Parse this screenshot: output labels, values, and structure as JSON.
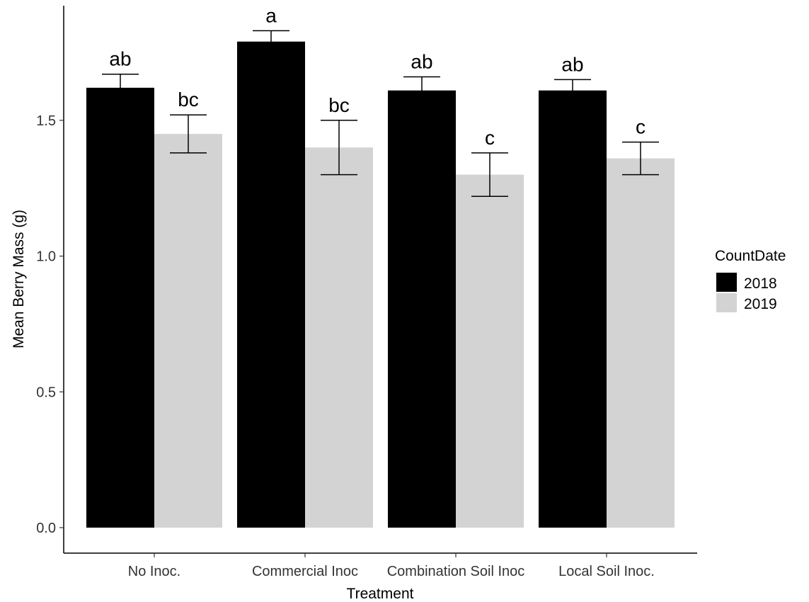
{
  "chart_data": {
    "type": "bar",
    "xlabel": "Treatment",
    "ylabel": "Mean Berry Mass (g)",
    "ylim": [
      0,
      1.9
    ],
    "yticks": [
      "0.0",
      "0.5",
      "1.0",
      "1.5"
    ],
    "grid": false,
    "legend_position": "right",
    "legend_title": "CountDate",
    "categories": [
      "No Inoc.",
      "Commercial Inoc",
      "Combination Soil Inoc",
      "Local Soil Inoc."
    ],
    "series": [
      {
        "name": "2018",
        "color": "#000000",
        "values": [
          1.62,
          1.79,
          1.61,
          1.61
        ],
        "error_upper": [
          1.67,
          1.83,
          1.66,
          1.65
        ],
        "labels": [
          "ab",
          "a",
          "ab",
          "ab"
        ]
      },
      {
        "name": "2019",
        "color": "#d3d3d3",
        "values": [
          1.45,
          1.4,
          1.3,
          1.36
        ],
        "error_upper": [
          1.52,
          1.5,
          1.38,
          1.42
        ],
        "labels": [
          "bc",
          "bc",
          "c",
          "c"
        ]
      }
    ]
  }
}
